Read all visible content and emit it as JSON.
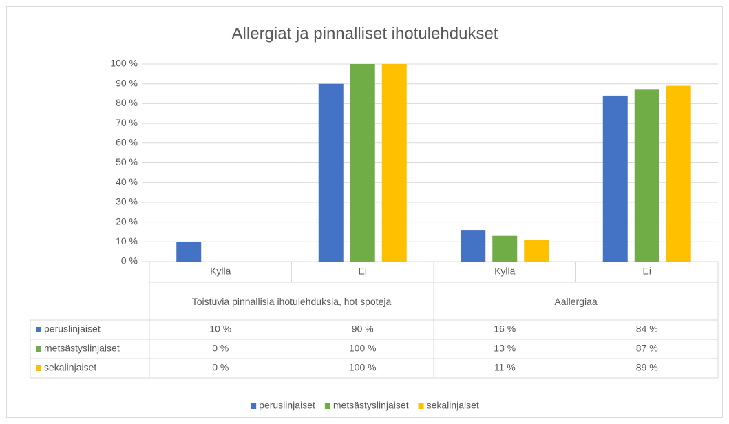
{
  "chart_data": {
    "type": "bar",
    "title": "Allergiat ja pinnalliset ihotulehdukset",
    "categories": [
      "Kyllä",
      "Ei",
      "Kyllä",
      "Ei"
    ],
    "groups": [
      "Toistuvia pinnallisia ihotulehduksia, hot spoteja",
      "Aallergiaa"
    ],
    "series": [
      {
        "name": "peruslinjaiset",
        "color": "#4472c4",
        "values": [
          10,
          90,
          16,
          84
        ],
        "value_labels": [
          "10 %",
          "90 %",
          "16 %",
          "84 %"
        ]
      },
      {
        "name": "metsästyslinjaiset",
        "color": "#70ad47",
        "values": [
          0,
          100,
          13,
          87
        ],
        "value_labels": [
          "0 %",
          "100 %",
          "13 %",
          "87 %"
        ]
      },
      {
        "name": "sekalinjaiset",
        "color": "#ffc000",
        "values": [
          0,
          100,
          11,
          89
        ],
        "value_labels": [
          "0 %",
          "100 %",
          "11 %",
          "89 %"
        ]
      }
    ],
    "ylim": [
      0,
      100
    ],
    "yticks": [
      {
        "value": 0,
        "label": "0 %"
      },
      {
        "value": 10,
        "label": "10 %"
      },
      {
        "value": 20,
        "label": "20 %"
      },
      {
        "value": 30,
        "label": "30 %"
      },
      {
        "value": 40,
        "label": "40 %"
      },
      {
        "value": 50,
        "label": "50 %"
      },
      {
        "value": 60,
        "label": "60 %"
      },
      {
        "value": 70,
        "label": "70 %"
      },
      {
        "value": 80,
        "label": "80 %"
      },
      {
        "value": 90,
        "label": "90 %"
      },
      {
        "value": 100,
        "label": "100 %"
      }
    ],
    "grid": true,
    "legend": "bottom"
  }
}
